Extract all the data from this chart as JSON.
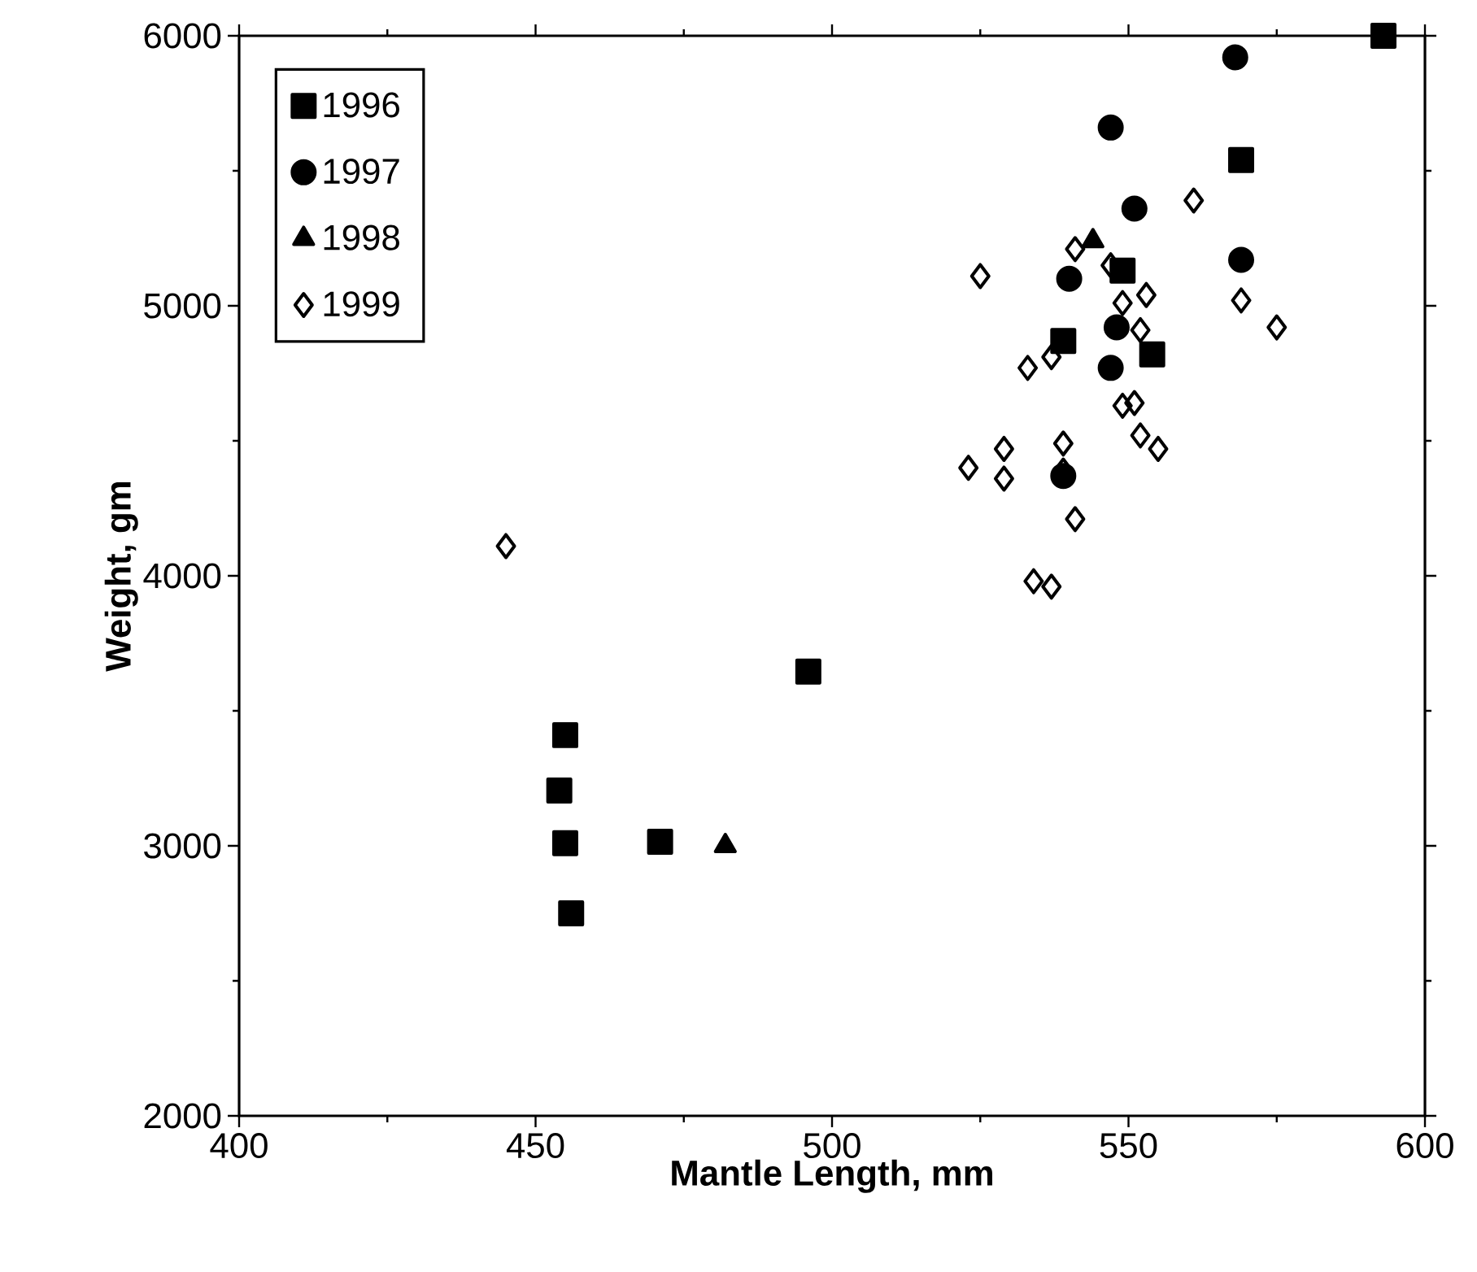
{
  "chart_data": {
    "type": "scatter",
    "xlabel": "Mantle Length, mm",
    "ylabel": "Weight, gm",
    "xlim": [
      400,
      600
    ],
    "xticks": [
      400,
      450,
      500,
      550,
      600
    ],
    "ylim": [
      2000,
      6000
    ],
    "yticks": [
      2000,
      3000,
      4000,
      5000,
      6000
    ],
    "grid": false,
    "legend": "top left",
    "series": [
      {
        "name": "1996",
        "color": "#000000",
        "marker": "square",
        "x": [
          593,
          569,
          549,
          539,
          554,
          455,
          454,
          455,
          456,
          471,
          496
        ],
        "values": [
          6000,
          5540,
          5130,
          4870,
          4820,
          3410,
          3205,
          3010,
          2750,
          3015,
          3645
        ]
      },
      {
        "name": "1997",
        "color": "#000000",
        "marker": "circle",
        "x": [
          568,
          547,
          551,
          569,
          540,
          548,
          547,
          539
        ],
        "values": [
          5920,
          5660,
          5360,
          5170,
          5100,
          4920,
          4770,
          4370
        ]
      },
      {
        "name": "1998",
        "color": "#000000",
        "marker": "triangle",
        "x": [
          482,
          544
        ],
        "values": [
          3000,
          5240
        ]
      },
      {
        "name": "1999",
        "color": "#000000",
        "marker": "diamond",
        "x": [
          561,
          541,
          525,
          547,
          549,
          553,
          552,
          569,
          575,
          537,
          533,
          549,
          551,
          552,
          555,
          529,
          523,
          529,
          539,
          539,
          541,
          534,
          537,
          445
        ],
        "values": [
          5390,
          5210,
          5110,
          5150,
          5010,
          5040,
          4910,
          5020,
          4920,
          4810,
          4770,
          4630,
          4640,
          4520,
          4470,
          4470,
          4400,
          4360,
          4490,
          4390,
          4210,
          3980,
          3960,
          4110
        ]
      }
    ]
  }
}
